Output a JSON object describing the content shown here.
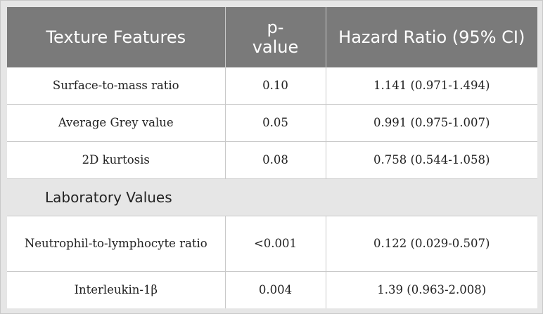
{
  "table": {
    "headers": [
      "Texture Features",
      "p-\nvalue",
      "Hazard Ratio (95% CI)"
    ],
    "texture_rows": [
      {
        "feature": "Surface-to-mass ratio",
        "p_value": "0.10",
        "hazard_ratio": "1.141 (0.971-1.494)"
      },
      {
        "feature": "Average Grey value",
        "p_value": "0.05",
        "hazard_ratio": "0.991 (0.975-1.007)"
      },
      {
        "feature": "2D kurtosis",
        "p_value": "0.08",
        "hazard_ratio": "0.758 (0.544-1.058)"
      }
    ],
    "section_label": "Laboratory Values",
    "lab_rows": [
      {
        "feature": "Neutrophil-to-lymphocyte ratio",
        "p_value": "<0.001",
        "hazard_ratio": "0.122 (0.029-0.507)"
      },
      {
        "feature": "Interleukin-1β",
        "p_value": "0.004",
        "hazard_ratio": "1.39 (0.963-2.008)"
      }
    ]
  }
}
